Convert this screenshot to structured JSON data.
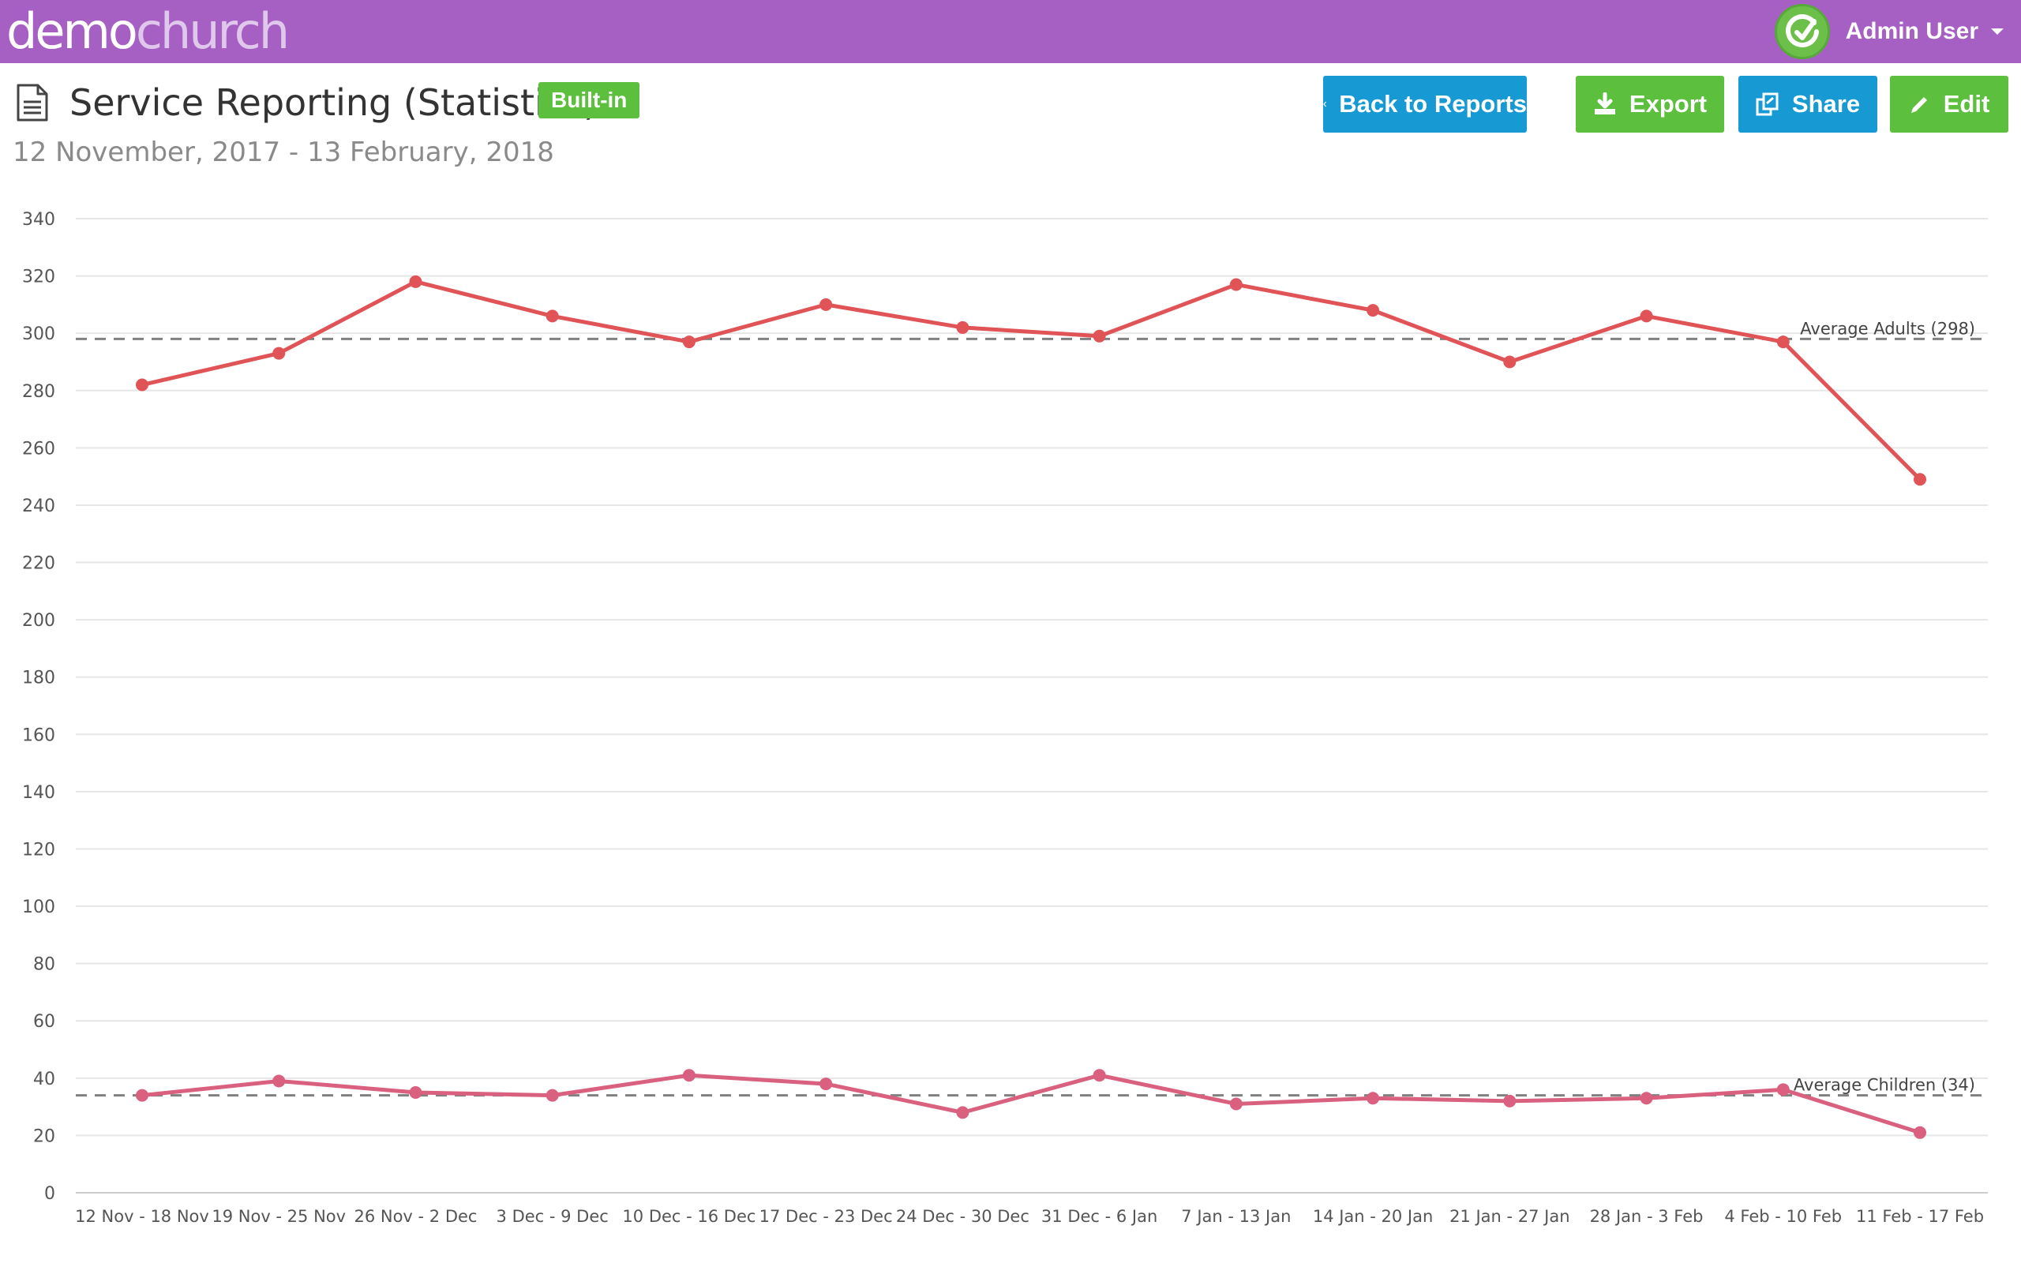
{
  "app": {
    "logo_primary": "demo",
    "logo_secondary": "church",
    "user_name": "Admin User",
    "brand_color": "#a65fc2"
  },
  "report": {
    "title": "Service Reporting (Statistics)",
    "badge": "Built-in",
    "date_range": "12 November, 2017 - 13 February, 2018"
  },
  "actions": {
    "back_label": "Back to Reports",
    "export_label": "Export",
    "share_label": "Share",
    "edit_label": "Edit"
  },
  "colors": {
    "primary_button": "#1799d4",
    "success_button": "#5cbf3d",
    "adults_series": "#e05357",
    "children_series": "#d9607f",
    "average_line": "#808080"
  },
  "icons": [
    "document-icon",
    "chevron-left-icon",
    "download-icon",
    "share-icon",
    "pencil-icon",
    "caret-down-icon"
  ],
  "chart_data": {
    "type": "line",
    "title": "",
    "xlabel": "",
    "ylabel": "",
    "ylim": [
      0,
      340
    ],
    "y_ticks": [
      0,
      20,
      40,
      60,
      80,
      100,
      120,
      140,
      160,
      180,
      200,
      220,
      240,
      260,
      280,
      300,
      320,
      340
    ],
    "grid": true,
    "categories": [
      "12 Nov - 18 Nov",
      "19 Nov - 25 Nov",
      "26 Nov - 2 Dec",
      "3 Dec - 9 Dec",
      "10 Dec - 16 Dec",
      "17 Dec - 23 Dec",
      "24 Dec - 30 Dec",
      "31 Dec - 6 Jan",
      "7 Jan - 13 Jan",
      "14 Jan - 20 Jan",
      "21 Jan - 27 Jan",
      "28 Jan - 3 Feb",
      "4 Feb - 10 Feb",
      "11 Feb - 17 Feb"
    ],
    "series": [
      {
        "values": [
          282,
          293,
          318,
          306,
          297,
          310,
          302,
          299,
          317,
          308,
          290,
          306,
          297,
          249
        ]
      },
      {
        "values": [
          34,
          39,
          35,
          34,
          41,
          38,
          28,
          41,
          31,
          33,
          32,
          33,
          36,
          21
        ]
      }
    ],
    "reference_lines": [
      {
        "label": "Average Adults (298)",
        "value": 298
      },
      {
        "label": "Average Children (34)",
        "value": 34
      }
    ]
  }
}
